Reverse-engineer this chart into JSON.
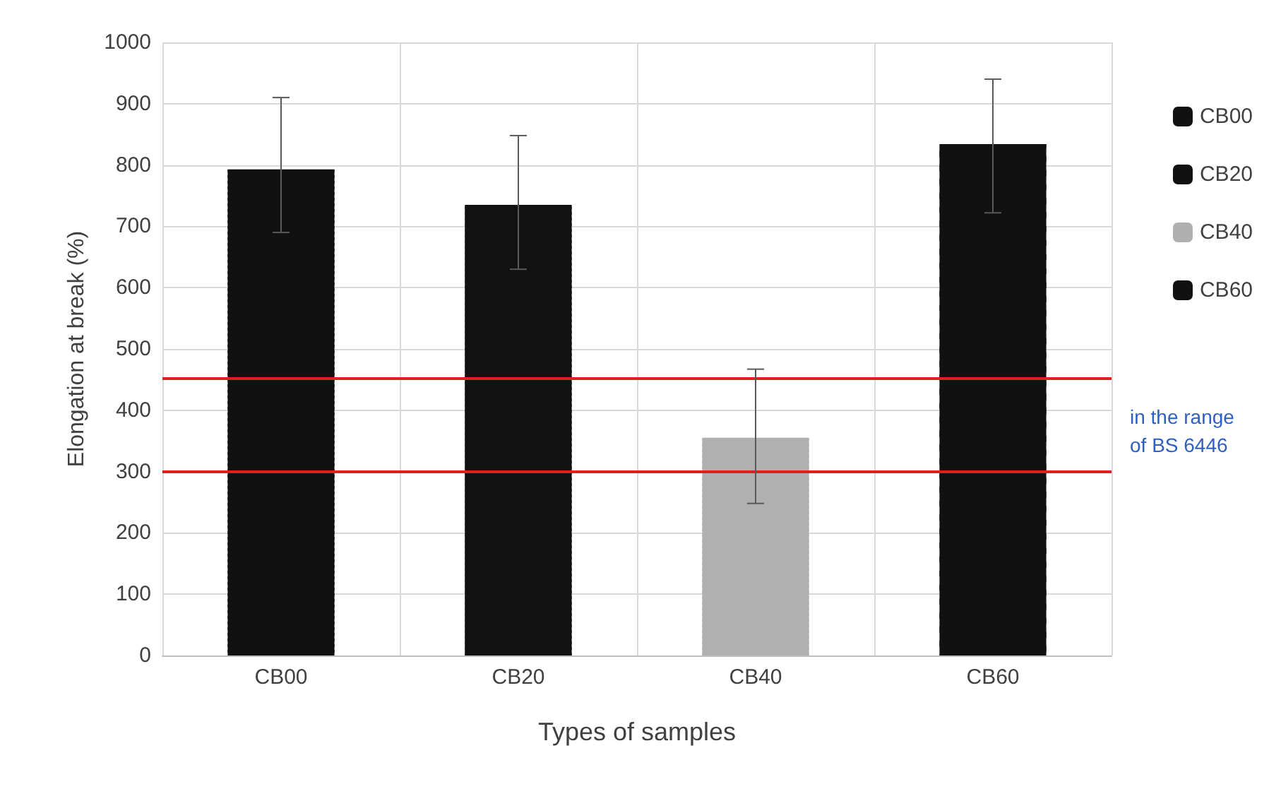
{
  "chart_data": {
    "type": "bar",
    "xlabel": "Types of samples",
    "ylabel": "Elongation at break (%)",
    "categories": [
      "CB00",
      "CB20",
      "CB40",
      "CB60"
    ],
    "series": [
      {
        "name": "CB00",
        "color": "#111111",
        "values": [
          793,
          null,
          null,
          null
        ],
        "errors": [
          [
            690,
            910
          ],
          null,
          null,
          null
        ]
      },
      {
        "name": "CB20",
        "color": "#111111",
        "values": [
          null,
          735,
          null,
          null
        ],
        "errors": [
          null,
          [
            630,
            848
          ],
          null,
          null
        ]
      },
      {
        "name": "CB40",
        "color": "#b0b0b0",
        "values": [
          null,
          null,
          355,
          null
        ],
        "errors": [
          null,
          null,
          [
            248,
            467
          ],
          null
        ]
      },
      {
        "name": "CB60",
        "color": "#111111",
        "values": [
          null,
          null,
          null,
          834
        ],
        "errors": [
          null,
          null,
          null,
          [
            722,
            940
          ]
        ]
      }
    ],
    "ylim": [
      0,
      1000
    ],
    "yticks": [
      0,
      100,
      200,
      300,
      400,
      500,
      600,
      700,
      800,
      900,
      1000
    ],
    "grid": true,
    "legend": "right",
    "ref_lines": [
      {
        "axis": "y",
        "value": 452,
        "color": "#e02020"
      },
      {
        "axis": "y",
        "value": 300,
        "color": "#e02020"
      }
    ],
    "annotations": [
      "in the range of BS 6446"
    ]
  }
}
